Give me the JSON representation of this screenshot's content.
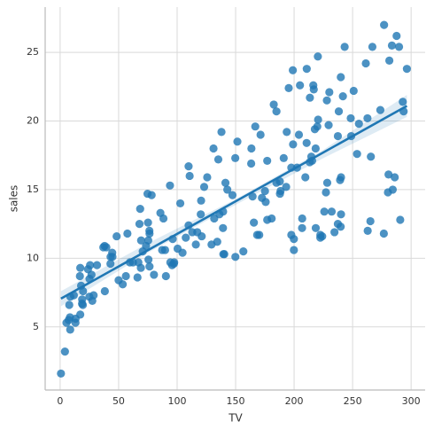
{
  "chart_data": {
    "type": "scatter",
    "x_label": "TV",
    "y_label": "sales",
    "color": "#1f77b4",
    "grid": true,
    "xlim": [
      -12.8,
      312
    ],
    "ylim": [
      0.4,
      28.3
    ],
    "xticks": [
      0,
      50,
      100,
      150,
      200,
      250,
      300
    ],
    "yticks": [
      5,
      10,
      15,
      20,
      25
    ],
    "x": [
      230.1,
      44.5,
      17.2,
      151.5,
      180.8,
      8.7,
      57.5,
      120.2,
      8.6,
      199.8,
      66.1,
      214.7,
      23.8,
      97.5,
      204.1,
      195.4,
      67.8,
      281.4,
      69.2,
      147.3,
      218.4,
      237.4,
      13.2,
      228.3,
      62.3,
      262.9,
      142.9,
      240.1,
      248.8,
      70.6,
      292.9,
      112.9,
      97.2,
      265.6,
      95.7,
      290.7,
      266.9,
      74.7,
      43.1,
      228,
      202.5,
      177,
      293.6,
      206.9,
      25.1,
      175.1,
      89.7,
      239.9,
      227.2,
      66.9,
      199.8,
      100.4,
      216.4,
      182.6,
      262.7,
      198.9,
      7.3,
      136.2,
      210.8,
      210.7,
      53.5,
      261.3,
      239.3,
      102.7,
      131.1,
      69,
      31.5,
      139.3,
      237.4,
      216.8,
      199.1,
      109.8,
      26.8,
      129.4,
      213.4,
      16.9,
      27.5,
      120.5,
      5.4,
      116,
      76.4,
      239.8,
      75.3,
      68.4,
      213.5,
      193.2,
      76.3,
      110.7,
      88.3,
      109.8,
      134.3,
      28.6,
      217.7,
      250.9,
      107.4,
      163.3,
      197.6,
      184.9,
      289.7,
      135.2,
      222.4,
      296.4,
      280.2,
      187.9,
      238.2,
      137.9,
      25,
      90.4,
      13.1,
      255.4,
      225.8,
      241.7,
      175.7,
      209.6,
      78.2,
      75.1,
      139.2,
      76.4,
      125.7,
      19.4,
      141.3,
      18.8,
      224,
      123.1,
      229.5,
      87.2,
      7.8,
      80.2,
      220.3,
      59.6,
      0.7,
      265.2,
      8.4,
      219.8,
      36.9,
      48.3,
      25.6,
      273.7,
      43,
      184.9,
      73.4,
      193.7,
      220.5,
      104.6,
      96.2,
      140.3,
      240.1,
      243.2,
      38,
      44.7,
      280.7,
      121,
      197.6,
      171.3,
      187.8,
      4.1,
      93.9,
      149.8,
      11.7,
      131.7,
      172.5,
      85.7,
      188.4,
      163.5,
      117.2,
      234.5,
      17.9,
      206.8,
      215.4,
      284.3,
      50,
      164.5,
      19.6,
      168.4,
      222.4,
      276.9,
      248.4,
      170.2,
      276.7,
      165.6,
      156.6,
      218.5,
      56.2,
      287.6,
      253.8,
      205,
      139.5,
      191.1,
      286,
      18.7,
      39.5,
      75.5,
      17.2,
      166.8,
      149.7,
      38.2,
      94.2,
      177,
      283.6,
      232.1
    ],
    "values": [
      22.1,
      10.4,
      9.3,
      18.5,
      12.9,
      7.2,
      11.8,
      13.2,
      4.8,
      10.6,
      8.6,
      17.4,
      9.2,
      9.7,
      19,
      22.4,
      12.5,
      24.4,
      11.3,
      14.6,
      18,
      12.5,
      5.6,
      15.5,
      9.7,
      12,
      15,
      15.9,
      18.9,
      10.5,
      21.4,
      11.9,
      9.6,
      17.4,
      9.5,
      12.8,
      25.4,
      14.7,
      10.1,
      21.5,
      16.6,
      17.1,
      20.7,
      12.9,
      8.5,
      14.9,
      10.6,
      23.2,
      14.8,
      9.7,
      11.4,
      10.7,
      22.6,
      21.2,
      20.2,
      23.7,
      5.5,
      13.2,
      23.8,
      18.4,
      8.1,
      24.2,
      15.7,
      14,
      18,
      9.3,
      9.5,
      13.4,
      18.9,
      22.3,
      18.3,
      12.4,
      8.8,
      11,
      17,
      8.7,
      6.9,
      14.2,
      5.3,
      11,
      11.8,
      12.3,
      11.3,
      13.6,
      21.7,
      15.2,
      12,
      16,
      12.9,
      16.7,
      11.2,
      7.3,
      19.4,
      22.2,
      11.5,
      16.9,
      11.7,
      15.5,
      25.4,
      17.2,
      11.7,
      23.8,
      14.8,
      14.7,
      20.7,
      19.2,
      7.2,
      8.7,
      5.3,
      19.8,
      13.4,
      21.8,
      14.1,
      15.9,
      14.6,
      12.6,
      12.2,
      9.4,
      15.9,
      6.6,
      15.5,
      7,
      11.6,
      15.2,
      19.7,
      10.6,
      6.6,
      8.8,
      24.7,
      9.7,
      1.6,
      12.7,
      5.7,
      19.6,
      10.8,
      11.6,
      9.5,
      20.8,
      9.6,
      20.7,
      10.9,
      19.2,
      20.1,
      10.4,
      11.4,
      10.3,
      13.2,
      25.4,
      10.9,
      10.1,
      16.1,
      11.6,
      16.6,
      19,
      15.6,
      3.2,
      15.3,
      10.1,
      7.3,
      12.9,
      14.4,
      13.3,
      14.9,
      18,
      11.9,
      11.9,
      8,
      12.2,
      17.1,
      15,
      8.4,
      14.5,
      7.6,
      11.7,
      11.5,
      27,
      20.2,
      11.7,
      11.8,
      12.6,
      10.5,
      12.2,
      8.7,
      26.2,
      17.6,
      22.6,
      10.3,
      17.3,
      15.9,
      6.7,
      10.8,
      9.9,
      5.9,
      19.6,
      17.3,
      7.6,
      9.7,
      12.8,
      25.5,
      13.4
    ],
    "regression": {
      "x": [
        0.7,
        296.4
      ],
      "y": [
        7.06,
        21.1
      ]
    },
    "band": {
      "x": [
        0.7,
        75,
        150,
        225,
        296.4
      ],
      "lower": [
        6.5,
        10.4,
        13.9,
        17.3,
        20.3
      ],
      "upper": [
        7.6,
        11.1,
        14.3,
        17.9,
        21.9
      ]
    }
  }
}
